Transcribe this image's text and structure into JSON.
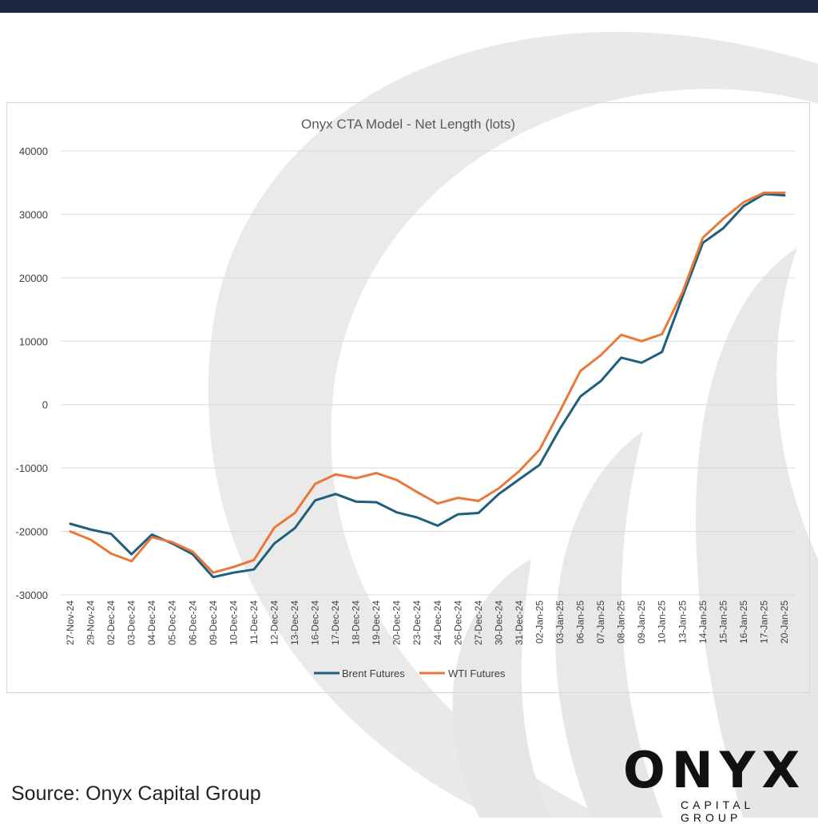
{
  "footer": {
    "source": "Source: Onyx Capital Group",
    "logo_word": "ONYX",
    "logo_sub": "CAPITAL GROUP"
  },
  "colors": {
    "topbar": "#1b2540",
    "brent": "#1f5f7e",
    "wti": "#e8793a",
    "grid": "#d9d9d9",
    "watermark": "#e6e6e6"
  },
  "chart_data": {
    "type": "line",
    "title": "Onyx CTA Model - Net Length (lots)",
    "xlabel": "",
    "ylabel": "",
    "ylim": [
      -30000,
      40000
    ],
    "yticks": [
      40000,
      30000,
      20000,
      10000,
      0,
      -10000,
      -20000,
      -30000
    ],
    "grid": true,
    "legend": "bottom",
    "categories": [
      "27-Nov-24",
      "29-Nov-24",
      "02-Dec-24",
      "03-Dec-24",
      "04-Dec-24",
      "05-Dec-24",
      "06-Dec-24",
      "09-Dec-24",
      "10-Dec-24",
      "11-Dec-24",
      "12-Dec-24",
      "13-Dec-24",
      "16-Dec-24",
      "17-Dec-24",
      "18-Dec-24",
      "19-Dec-24",
      "20-Dec-24",
      "23-Dec-24",
      "24-Dec-24",
      "26-Dec-24",
      "27-Dec-24",
      "30-Dec-24",
      "31-Dec-24",
      "02-Jan-25",
      "03-Jan-25",
      "06-Jan-25",
      "07-Jan-25",
      "08-Jan-25",
      "09-Jan-25",
      "10-Jan-25",
      "13-Jan-25",
      "14-Jan-25",
      "15-Jan-25",
      "16-Jan-25",
      "17-Jan-25",
      "20-Jan-25"
    ],
    "series": [
      {
        "name": "Brent Futures",
        "color": "#1f5f7e",
        "values": [
          -18800,
          -19700,
          -20400,
          -23600,
          -20500,
          -21900,
          -23600,
          -27200,
          -26500,
          -26000,
          -21900,
          -19500,
          -15100,
          -14100,
          -15300,
          -15400,
          -17000,
          -17800,
          -19100,
          -17300,
          -17100,
          -14100,
          -11800,
          -9500,
          -3800,
          1300,
          3700,
          7400,
          6600,
          8300,
          17000,
          25500,
          27800,
          31300,
          33200,
          33000
        ]
      },
      {
        "name": "WTI Futures",
        "color": "#e8793a",
        "values": [
          -20000,
          -21300,
          -23500,
          -24700,
          -20900,
          -21700,
          -23200,
          -26500,
          -25600,
          -24500,
          -19400,
          -17100,
          -12500,
          -11000,
          -11600,
          -10800,
          -11900,
          -13800,
          -15600,
          -14700,
          -15200,
          -13200,
          -10500,
          -7100,
          -1000,
          5300,
          7800,
          11000,
          10000,
          11100,
          17700,
          26300,
          29300,
          31900,
          33400,
          33400
        ]
      }
    ]
  }
}
